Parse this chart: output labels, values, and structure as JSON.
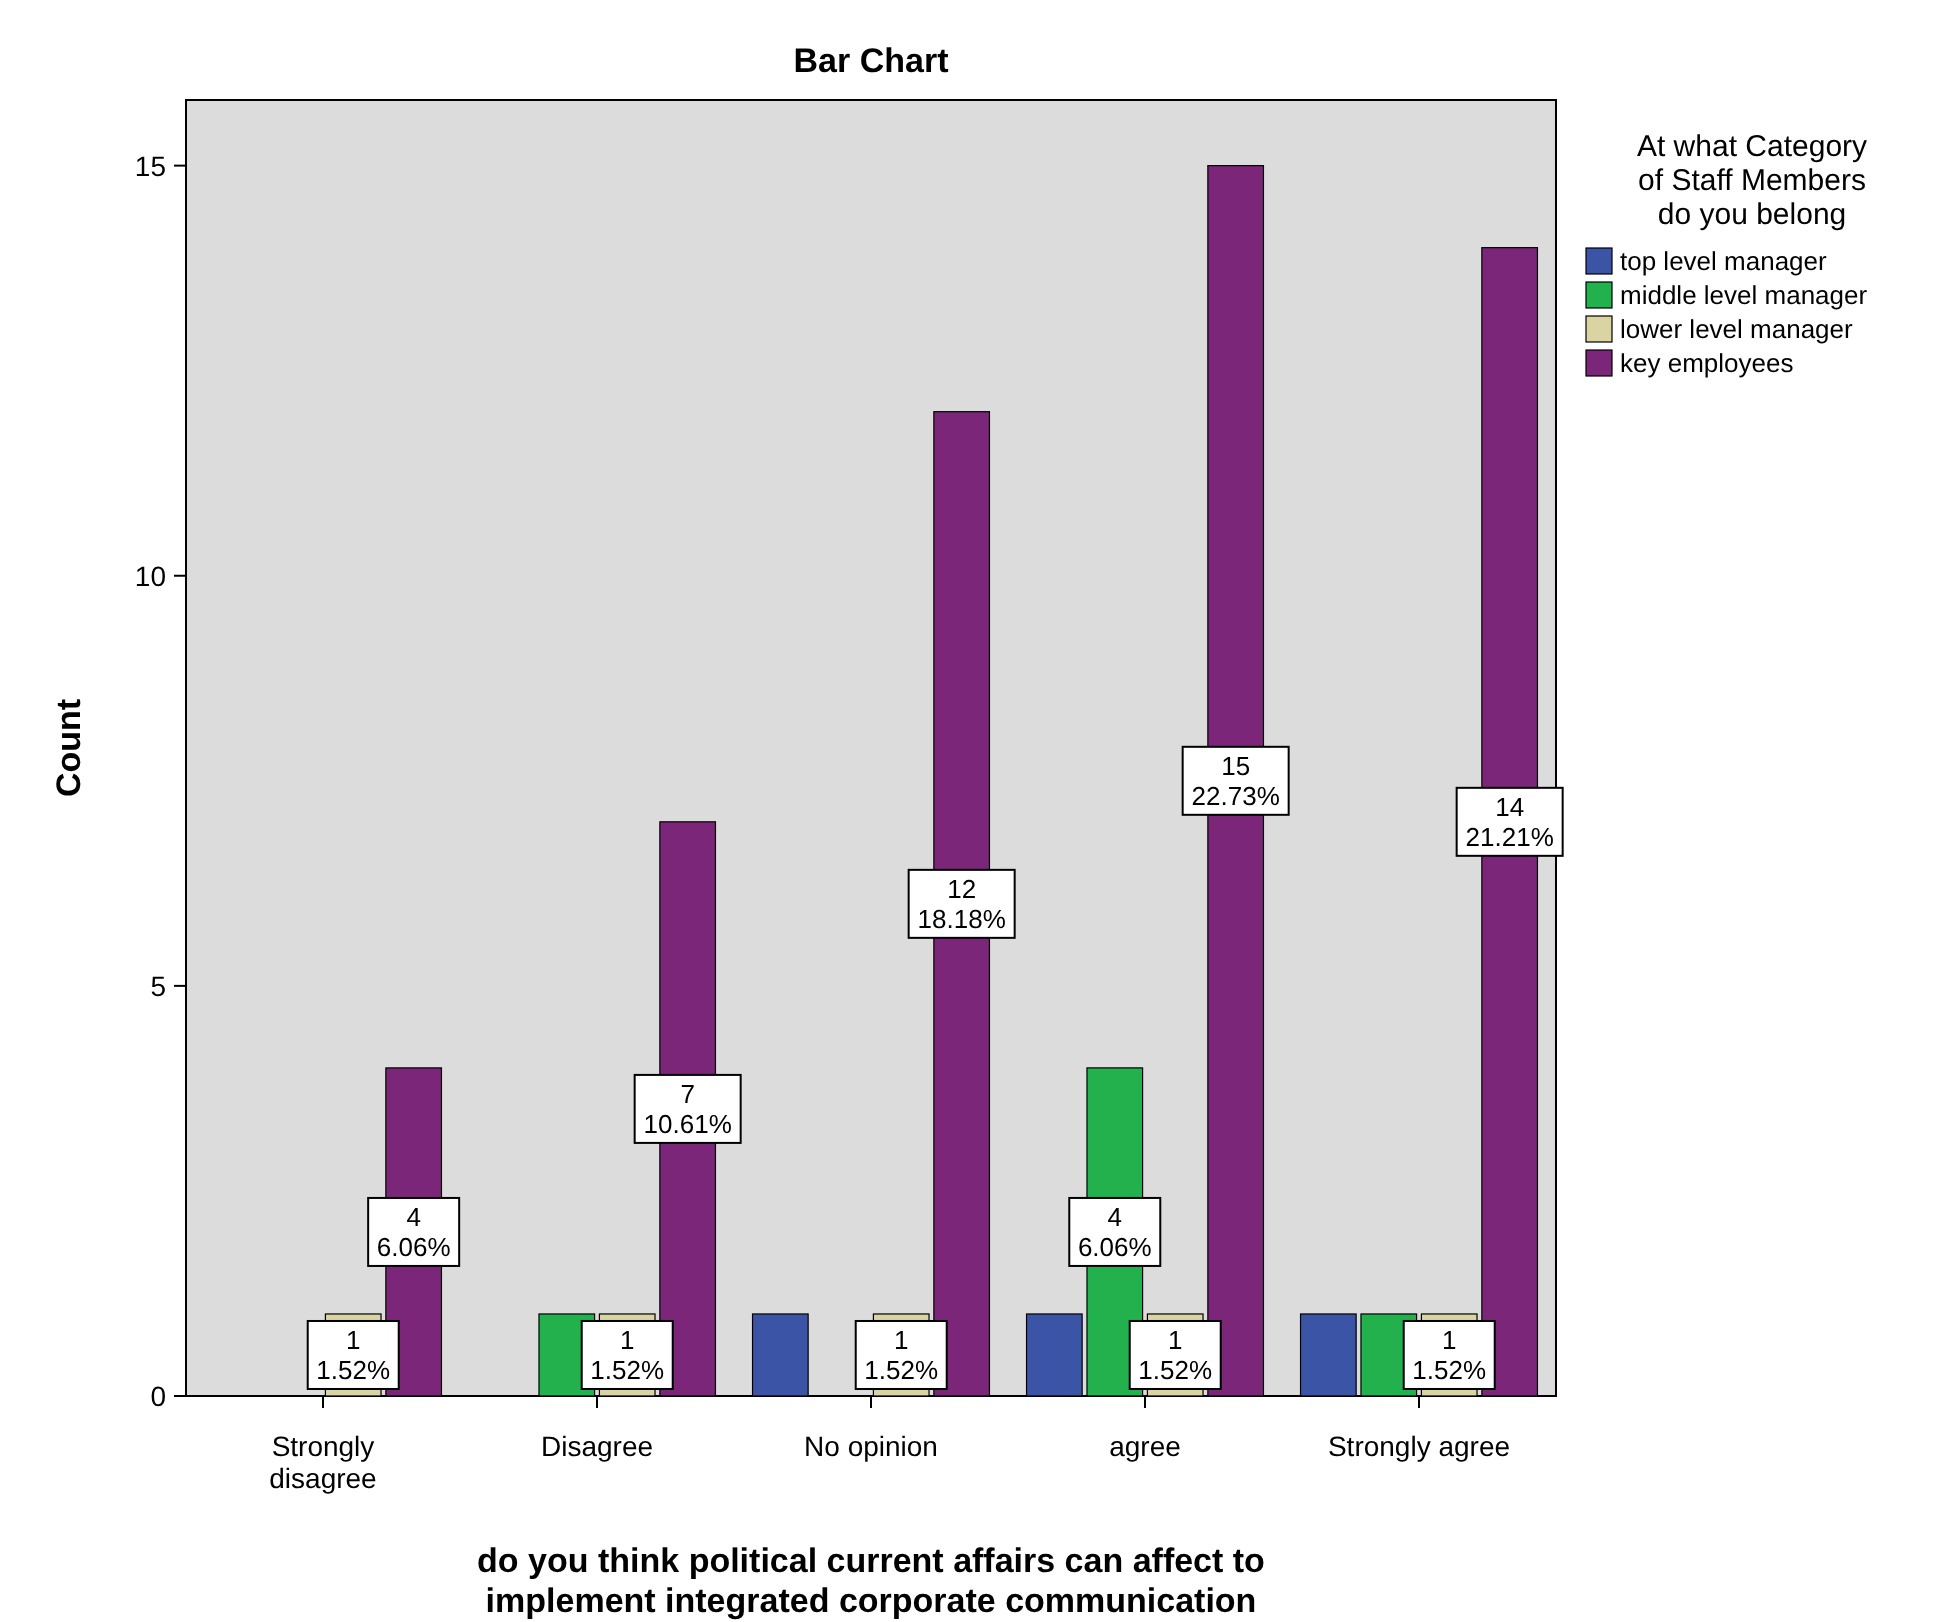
{
  "chart_data": {
    "type": "bar",
    "title": "Bar Chart",
    "xlabel": "do you think political current affairs can affect to\nimplement integrated corporate communication",
    "ylabel": "Count",
    "legend_title": "At what Category\nof Staff Members\ndo you belong",
    "legend": "right",
    "categories": [
      "Strongly\ndisagree",
      "Disagree",
      "No opinion",
      "agree",
      "Strongly agree"
    ],
    "ylim": [
      0,
      15.8
    ],
    "yticks": [
      0,
      5,
      10,
      15
    ],
    "grid": false,
    "series": [
      {
        "name": "top level manager",
        "color": "#3b54a5",
        "values": [
          0,
          0,
          1,
          1,
          1
        ],
        "value_labels": [
          null,
          null,
          null,
          null,
          null
        ]
      },
      {
        "name": "middle level manager",
        "color": "#22b14c",
        "values": [
          0,
          1,
          0,
          4,
          1
        ],
        "value_labels": [
          null,
          null,
          null,
          "4\n6.06%",
          null
        ]
      },
      {
        "name": "lower level manager",
        "color": "#d9d4a1",
        "values": [
          1,
          1,
          1,
          1,
          1
        ],
        "value_labels": [
          "1\n1.52%",
          "1\n1.52%",
          "1\n1.52%",
          "1\n1.52%",
          "1\n1.52%"
        ]
      },
      {
        "name": "key employees",
        "color": "#7b2679",
        "values": [
          4,
          7,
          12,
          15,
          14
        ],
        "value_labels": [
          "4\n6.06%",
          "7\n10.61%",
          "12\n18.18%",
          "15\n22.73%",
          "14\n21.21%"
        ]
      }
    ]
  }
}
